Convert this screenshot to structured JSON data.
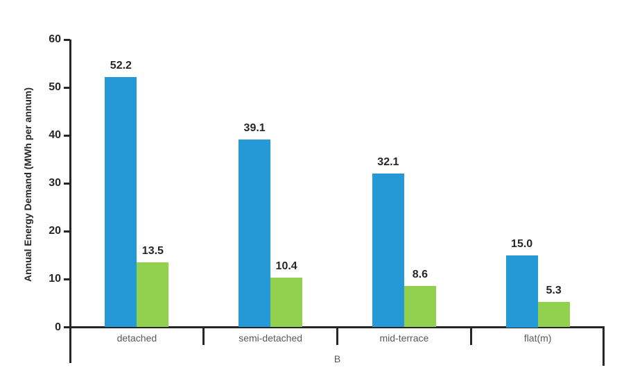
{
  "chart_data": {
    "type": "bar",
    "categories": [
      "detached",
      "semi-detached",
      "mid-terrace",
      "flat(m)"
    ],
    "series": [
      {
        "name": "blue-series",
        "color": "#2499D6",
        "values": [
          52.2,
          39.1,
          32.1,
          15.0
        ]
      },
      {
        "name": "green-series",
        "color": "#92D050",
        "values": [
          13.5,
          10.4,
          8.6,
          5.3
        ]
      }
    ],
    "title": "",
    "xlabel": "B",
    "ylabel": "Annual Energy Demand (MWh per annum)",
    "ylim": [
      0,
      60
    ],
    "yticks": [
      0,
      10,
      20,
      30,
      40,
      50,
      60
    ],
    "grid": false,
    "legend": "none",
    "value_label_decimals": 1
  },
  "colors": {
    "axis": "#262626",
    "value_label": "#262626",
    "tick_label": "#262626",
    "category_label": "#595959",
    "background": "#ffffff"
  }
}
